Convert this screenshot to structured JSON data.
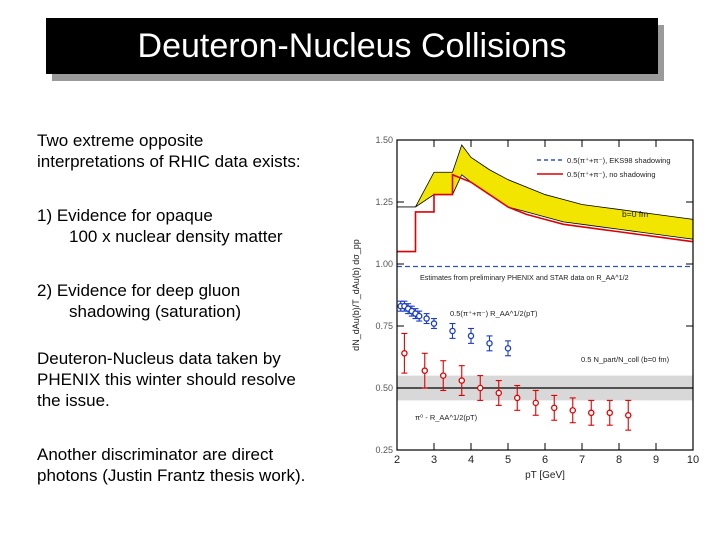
{
  "title": "Deuteron-Nucleus Collisions",
  "paragraphs": {
    "p1": [
      "Two extreme opposite",
      "interpretations of RHIC data exists:"
    ],
    "p2": [
      "1) Evidence for opaque",
      "100 x nuclear density matter"
    ],
    "p3": [
      "2) Evidence for deep gluon",
      "shadowing (saturation)"
    ],
    "p4": [
      "Deuteron-Nucleus data taken by",
      "PHENIX this winter should resolve",
      "the issue."
    ],
    "p5": [
      "Another discriminator are direct",
      "photons (Justin Frantz thesis work)."
    ]
  },
  "chart_data": {
    "type": "scatter",
    "xlabel": "pT [GeV]",
    "ylabel": "dN_dAu(b)/T_dAu(b) dσ_pp",
    "xlim": [
      2,
      10
    ],
    "ylim": [
      0.25,
      1.5
    ],
    "x_ticks": [
      "2",
      "3",
      "4",
      "5",
      "6",
      "7",
      "8",
      "9",
      "10"
    ],
    "y_ticks": [
      "0.25",
      "0.50",
      "0.75",
      "1.00",
      "1.25",
      "1.50"
    ],
    "legend": {
      "placement": "top-right",
      "entries": [
        {
          "label": "0.5(π⁺+π⁻), EKS98 shadowing",
          "style": "dashed",
          "color": "#3050c0"
        },
        {
          "label": "0.5(π⁺+π⁻), no shadowing",
          "style": "solid",
          "color": "#e00000"
        }
      ]
    },
    "annotations": {
      "b0": "b=0 fm",
      "estimates": "Estimates from preliminary PHENIX and STAR data on R_AA^1/2",
      "blue_label": "0.5(π⁺+π⁻) R_AA^1/2(pT)",
      "ncoll_label": "0.5 N_part/N_coll (b=0 fm)",
      "red_label": "π⁰ - R_AA^1/2(pT)"
    },
    "band": {
      "color": "#f2e600",
      "x": [
        2.0,
        2.5,
        3.0,
        3.5,
        3.75,
        4.0,
        4.5,
        5.0,
        5.5,
        6.0,
        6.5,
        7.0,
        7.5,
        8.0,
        8.5,
        9.0,
        9.5,
        10.0
      ],
      "upper": [
        1.23,
        1.23,
        1.37,
        1.37,
        1.48,
        1.43,
        1.38,
        1.34,
        1.31,
        1.28,
        1.26,
        1.24,
        1.23,
        1.22,
        1.21,
        1.2,
        1.19,
        1.18
      ],
      "lower": [
        1.23,
        1.23,
        1.28,
        1.28,
        1.36,
        1.33,
        1.28,
        1.23,
        1.21,
        1.19,
        1.17,
        1.16,
        1.15,
        1.14,
        1.13,
        1.12,
        1.11,
        1.1
      ]
    },
    "no_shadowing_curve": {
      "color": "#e00000",
      "x": [
        2.0,
        2.5,
        2.5,
        3.0,
        3.0,
        3.5,
        3.5,
        4.0,
        4.5,
        5.0,
        5.5,
        6.0,
        6.5,
        7.0,
        7.5,
        8.0,
        8.5,
        9.0,
        9.5,
        10.0
      ],
      "y": [
        1.05,
        1.05,
        1.21,
        1.21,
        1.28,
        1.28,
        1.36,
        1.33,
        1.28,
        1.23,
        1.2,
        1.18,
        1.16,
        1.15,
        1.14,
        1.13,
        1.12,
        1.11,
        1.1,
        1.09
      ]
    },
    "shadowing_curve": {
      "color": "#3050c0",
      "x": [
        2.0,
        3.0,
        4.0,
        5.0,
        6.0,
        7.0,
        8.0,
        9.0,
        10.0
      ],
      "y": [
        0.99,
        0.99,
        0.99,
        0.99,
        0.99,
        0.99,
        0.99,
        0.99,
        0.99
      ]
    },
    "ncoll_band": {
      "y_low": 0.45,
      "y_high": 0.55,
      "line": 0.5,
      "color": "#c8c8c8"
    },
    "series": [
      {
        "name": "0.5(π⁺+π⁻) R_AA^1/2(pT)",
        "color": "#1a3cc8",
        "marker": "circle",
        "x": [
          2.1,
          2.2,
          2.3,
          2.4,
          2.5,
          2.6,
          2.8,
          3.0,
          3.5,
          4.0,
          4.5,
          5.0
        ],
        "y": [
          0.83,
          0.83,
          0.82,
          0.81,
          0.8,
          0.79,
          0.78,
          0.76,
          0.73,
          0.71,
          0.68,
          0.66
        ],
        "err": [
          0.02,
          0.02,
          0.02,
          0.02,
          0.02,
          0.02,
          0.02,
          0.02,
          0.03,
          0.03,
          0.03,
          0.03
        ]
      },
      {
        "name": "π⁰ - R_AA^1/2(pT)",
        "color": "#e00000",
        "marker": "circle",
        "x": [
          2.2,
          2.75,
          3.25,
          3.75,
          4.25,
          4.75,
          5.25,
          5.75,
          6.25,
          6.75,
          7.25,
          7.75,
          8.25
        ],
        "y": [
          0.64,
          0.57,
          0.55,
          0.53,
          0.5,
          0.48,
          0.46,
          0.44,
          0.42,
          0.41,
          0.4,
          0.4,
          0.39
        ],
        "err": [
          0.08,
          0.07,
          0.06,
          0.06,
          0.05,
          0.05,
          0.05,
          0.05,
          0.05,
          0.05,
          0.05,
          0.05,
          0.06
        ]
      }
    ]
  }
}
